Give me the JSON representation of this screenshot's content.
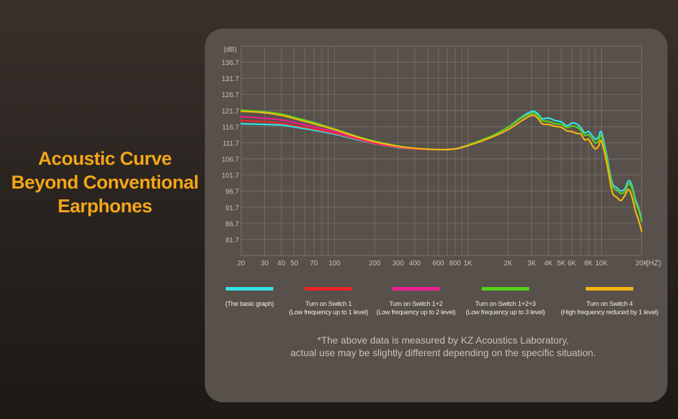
{
  "headline": {
    "line1": "Acoustic Curve",
    "line2": "Beyond Conventional",
    "line3": "Earphones"
  },
  "colors": {
    "accent": "#f2a618",
    "panel": "#57504b",
    "grid": "#7a726c"
  },
  "chart_data": {
    "type": "line",
    "x_scale": "log",
    "xlabel": "(HZ)",
    "ylabel": "(dB)",
    "xlim": [
      20,
      20000
    ],
    "ylim": [
      76.7,
      141.7
    ],
    "grid": true,
    "legend_position": "bottom",
    "x_ticks": [
      {
        "value": 20,
        "label": "20"
      },
      {
        "value": 30,
        "label": "30"
      },
      {
        "value": 40,
        "label": "40"
      },
      {
        "value": 50,
        "label": "50"
      },
      {
        "value": 70,
        "label": "70"
      },
      {
        "value": 100,
        "label": "100"
      },
      {
        "value": 200,
        "label": "200"
      },
      {
        "value": 300,
        "label": "300"
      },
      {
        "value": 400,
        "label": "400"
      },
      {
        "value": 600,
        "label": "600"
      },
      {
        "value": 800,
        "label": "800"
      },
      {
        "value": 1000,
        "label": "1K"
      },
      {
        "value": 2000,
        "label": "2K"
      },
      {
        "value": 3000,
        "label": "3K"
      },
      {
        "value": 4000,
        "label": "4K"
      },
      {
        "value": 5000,
        "label": "5K"
      },
      {
        "value": 6000,
        "label": "6K"
      },
      {
        "value": 8000,
        "label": "8K"
      },
      {
        "value": 10000,
        "label": "10K"
      },
      {
        "value": 20000,
        "label": "20K"
      }
    ],
    "y_ticks": [
      {
        "value": 136.7,
        "label": "136.7"
      },
      {
        "value": 131.7,
        "label": "131.7"
      },
      {
        "value": 126.7,
        "label": "126.7"
      },
      {
        "value": 121.7,
        "label": "121.7"
      },
      {
        "value": 116.7,
        "label": "116.7"
      },
      {
        "value": 111.7,
        "label": "111.7"
      },
      {
        "value": 106.7,
        "label": "106.7"
      },
      {
        "value": 101.7,
        "label": "101.7"
      },
      {
        "value": 96.7,
        "label": "96.7"
      },
      {
        "value": 91.7,
        "label": "91.7"
      },
      {
        "value": 86.7,
        "label": "86.7"
      },
      {
        "value": 81.7,
        "label": "81.7"
      }
    ],
    "series": [
      {
        "name": "(The basic graph)",
        "sub": "",
        "color": "#33e3e8",
        "x": [
          20,
          30,
          40,
          50,
          70,
          100,
          150,
          200,
          300,
          400,
          600,
          800,
          1000,
          1500,
          2000,
          2500,
          3000,
          3300,
          3600,
          4000,
          4500,
          5000,
          5500,
          6000,
          6500,
          7000,
          7500,
          8000,
          8500,
          9000,
          9500,
          10000,
          11000,
          12000,
          13000,
          14000,
          15000,
          16000,
          17000,
          18000,
          19000,
          20000
        ],
        "y": [
          117.6,
          117.4,
          117.2,
          116.6,
          115.6,
          114.4,
          112.6,
          111.4,
          110.2,
          109.8,
          109.6,
          109.8,
          111.0,
          113.8,
          116.6,
          119.6,
          121.4,
          120.9,
          119.2,
          119.4,
          118.6,
          118.2,
          117.0,
          117.8,
          117.6,
          116.4,
          114.8,
          115.2,
          114.0,
          112.8,
          113.5,
          115.0,
          107.5,
          99.5,
          97.8,
          96.8,
          97.5,
          100.0,
          98.2,
          94.0,
          91.5,
          88.0
        ]
      },
      {
        "name": "Turn on Switch 1",
        "sub": "(Low frequency up to 1 level)",
        "color": "#f0222a",
        "x": [
          20,
          30,
          40,
          50,
          70,
          100,
          150,
          200,
          300,
          400,
          600,
          800,
          1000,
          1500,
          2000,
          2500,
          3000,
          3300,
          3600,
          4000,
          4500,
          5000,
          5500,
          6000,
          6500,
          7000,
          7500,
          8000,
          8500,
          9000,
          9500,
          10000,
          11000,
          12000,
          13000,
          14000,
          15000,
          16000,
          17000,
          18000,
          19000,
          20000
        ],
        "y": [
          118.6,
          118.2,
          117.8,
          117.1,
          116.0,
          114.7,
          112.8,
          111.5,
          110.3,
          109.8,
          109.6,
          109.8,
          111.0,
          113.8,
          116.5,
          119.3,
          120.8,
          120.3,
          118.6,
          118.3,
          117.6,
          117.4,
          116.4,
          116.9,
          116.6,
          115.6,
          114.0,
          114.2,
          113.0,
          111.6,
          112.4,
          113.8,
          106.6,
          98.6,
          97.0,
          96.0,
          96.6,
          99.0,
          97.4,
          93.2,
          90.8,
          87.4
        ]
      },
      {
        "name": "Turn on Switch 1+2",
        "sub": "(Low frequency up to 2 level)",
        "color": "#ef1e8e",
        "x": [
          20,
          30,
          40,
          50,
          70,
          100,
          150,
          200,
          300,
          400,
          600,
          800,
          1000,
          1500,
          2000,
          2500,
          3000,
          3300,
          3600,
          4000,
          4500,
          5000,
          5500,
          6000,
          6500,
          7000,
          7500,
          8000,
          8500,
          9000,
          9500,
          10000,
          11000,
          12000,
          13000,
          14000,
          15000,
          16000,
          17000,
          18000,
          19000,
          20000
        ],
        "y": [
          119.8,
          119.3,
          118.8,
          118.0,
          116.6,
          115.1,
          113.0,
          111.7,
          110.4,
          109.9,
          109.6,
          109.8,
          111.0,
          113.8,
          116.5,
          119.3,
          120.8,
          120.3,
          118.6,
          118.3,
          117.6,
          117.4,
          116.4,
          116.9,
          116.6,
          115.6,
          114.0,
          114.2,
          113.0,
          111.6,
          112.4,
          113.8,
          106.6,
          98.6,
          97.0,
          96.0,
          96.6,
          99.0,
          97.4,
          93.2,
          90.8,
          87.4
        ]
      },
      {
        "name": "Turn on Switch 1+2+3",
        "sub": "(Low frequency up to 3 level)",
        "color": "#52d419",
        "x": [
          20,
          30,
          40,
          50,
          70,
          100,
          150,
          200,
          300,
          400,
          600,
          800,
          1000,
          1500,
          2000,
          2500,
          3000,
          3300,
          3600,
          4000,
          4500,
          5000,
          5500,
          6000,
          6500,
          7000,
          7500,
          8000,
          8500,
          9000,
          9500,
          10000,
          11000,
          12000,
          13000,
          14000,
          15000,
          16000,
          17000,
          18000,
          19000,
          20000
        ],
        "y": [
          121.8,
          121.3,
          120.6,
          119.6,
          118.0,
          116.0,
          113.6,
          112.2,
          110.7,
          110.0,
          109.6,
          109.8,
          111.0,
          113.8,
          116.5,
          119.3,
          120.8,
          120.3,
          118.6,
          118.3,
          117.6,
          117.4,
          116.4,
          116.9,
          116.6,
          115.6,
          114.0,
          114.2,
          113.0,
          111.6,
          112.4,
          113.8,
          106.6,
          98.6,
          97.0,
          96.0,
          96.6,
          99.0,
          97.4,
          93.2,
          90.8,
          87.4
        ]
      },
      {
        "name": "Turn on Switch 4",
        "sub": "(High frequency reduced by 1 level)",
        "color": "#f5b512",
        "x": [
          20,
          30,
          40,
          50,
          70,
          100,
          150,
          200,
          300,
          400,
          600,
          800,
          1000,
          1500,
          2000,
          2500,
          3000,
          3300,
          3600,
          4000,
          4500,
          5000,
          5500,
          6000,
          6500,
          7000,
          7500,
          8000,
          8500,
          9000,
          9500,
          10000,
          11000,
          12000,
          13000,
          14000,
          15000,
          16000,
          17000,
          18000,
          19000,
          20000
        ],
        "y": [
          121.5,
          121.0,
          120.2,
          119.2,
          117.6,
          115.8,
          113.4,
          112.0,
          110.6,
          110.0,
          109.6,
          109.8,
          110.8,
          113.4,
          115.8,
          118.4,
          120.2,
          119.5,
          117.6,
          117.4,
          116.8,
          116.5,
          115.4,
          115.2,
          114.6,
          114.4,
          112.6,
          112.8,
          111.0,
          109.8,
          110.6,
          112.2,
          105.0,
          96.6,
          94.8,
          93.8,
          95.4,
          97.2,
          94.6,
          90.4,
          87.6,
          84.2
        ]
      }
    ]
  },
  "footnote": {
    "line1": "*The above data is measured by KZ Acoustics Laboratory,",
    "line2": "actual use may be slightly different depending on the specific situation."
  }
}
